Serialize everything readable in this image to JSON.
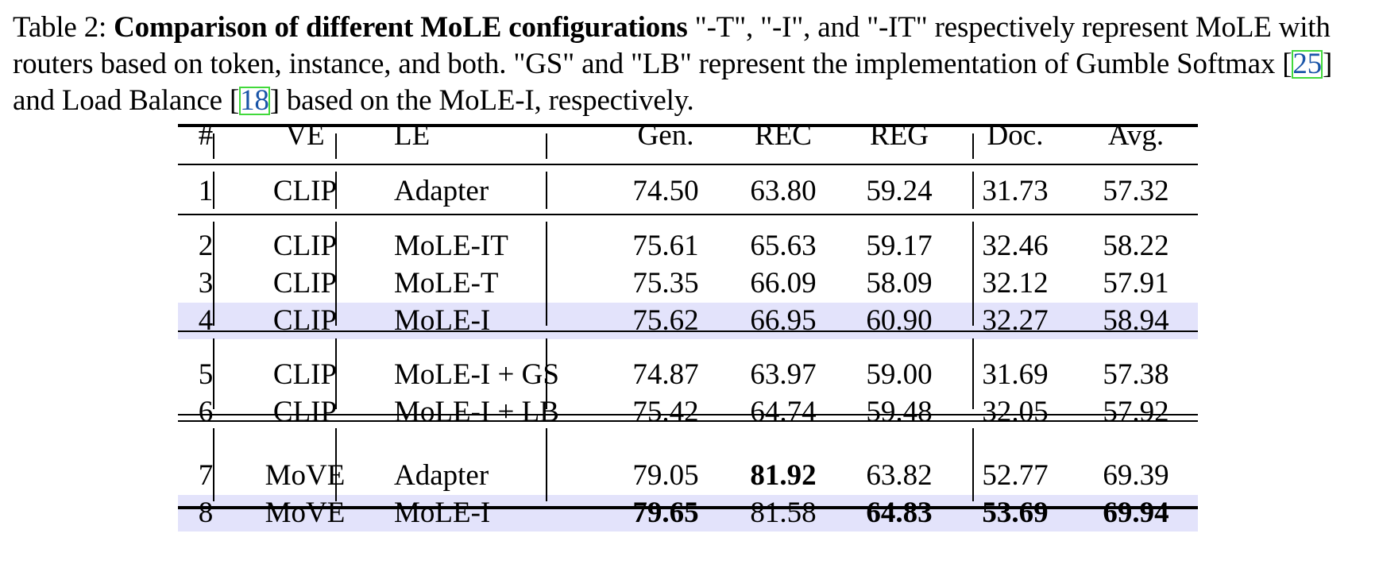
{
  "caption": {
    "label": "Table 2: ",
    "title": "Comparison of different MoLE configurations",
    "text1": " \"-T\", \"-I\", and \"-IT\" respectively represent MoLE with routers based on token, instance, and both. \"GS\" and \"LB\" represent the implementation of Gumble Softmax [",
    "ref1": "25",
    "text2": "] and Load Balance [",
    "ref2": "18",
    "text3": "] based on the MoLE-I, respectively."
  },
  "table": {
    "headers": [
      "#",
      "VE",
      "LE",
      "Gen.",
      "REC",
      "REG",
      "Doc.",
      "Avg."
    ],
    "rows": [
      {
        "id": "1",
        "ve": "CLIP",
        "le": "Adapter",
        "gen": "74.50",
        "rec": "63.80",
        "reg": "59.24",
        "doc": "31.73",
        "avg": "57.32",
        "highlight": false,
        "bold": []
      },
      {
        "id": "2",
        "ve": "CLIP",
        "le": "MoLE-IT",
        "gen": "75.61",
        "rec": "65.63",
        "reg": "59.17",
        "doc": "32.46",
        "avg": "58.22",
        "highlight": false,
        "bold": []
      },
      {
        "id": "3",
        "ve": "CLIP",
        "le": "MoLE-T",
        "gen": "75.35",
        "rec": "66.09",
        "reg": "58.09",
        "doc": "32.12",
        "avg": "57.91",
        "highlight": false,
        "bold": []
      },
      {
        "id": "4",
        "ve": "CLIP",
        "le": "MoLE-I",
        "gen": "75.62",
        "rec": "66.95",
        "reg": "60.90",
        "doc": "32.27",
        "avg": "58.94",
        "highlight": true,
        "bold": []
      },
      {
        "id": "5",
        "ve": "CLIP",
        "le": "MoLE-I + GS",
        "gen": "74.87",
        "rec": "63.97",
        "reg": "59.00",
        "doc": "31.69",
        "avg": "57.38",
        "highlight": false,
        "bold": []
      },
      {
        "id": "6",
        "ve": "CLIP",
        "le": "MoLE-I + LB",
        "gen": "75.42",
        "rec": "64.74",
        "reg": "59.48",
        "doc": "32.05",
        "avg": "57.92",
        "highlight": false,
        "bold": []
      },
      {
        "id": "7",
        "ve": "MoVE",
        "le": "Adapter",
        "gen": "79.05",
        "rec": "81.92",
        "reg": "63.82",
        "doc": "52.77",
        "avg": "69.39",
        "highlight": false,
        "bold": [
          "rec"
        ]
      },
      {
        "id": "8",
        "ve": "MoVE",
        "le": "MoLE-I",
        "gen": "79.65",
        "rec": "81.58",
        "reg": "64.83",
        "doc": "53.69",
        "avg": "69.94",
        "highlight": true,
        "bold": [
          "gen",
          "reg",
          "doc",
          "avg"
        ]
      }
    ],
    "highlight_color": "#e3e3fb",
    "ref_box_color": "#41d93b",
    "ref_text_color": "#1a55a8"
  }
}
